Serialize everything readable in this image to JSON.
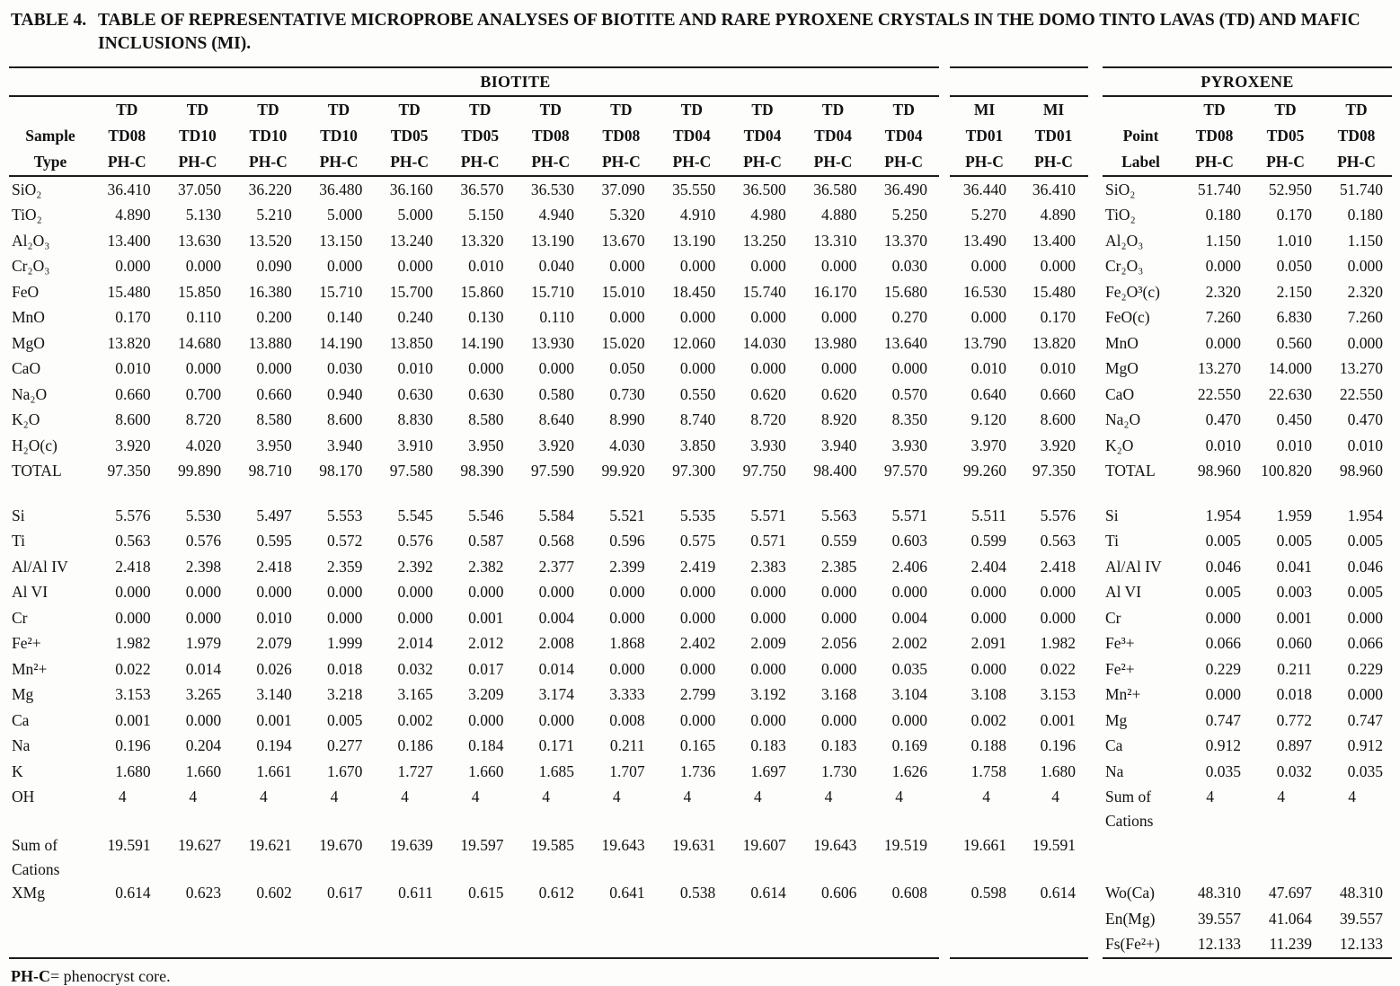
{
  "title": {
    "label": "TABLE 4.",
    "line1": "TABLE OF REPRESENTATIVE MICROPROBE ANALYSES OF BIOTITE AND RARE PYROXENE CRYSTALS IN THE DOMO TINTO LAVAS (TD) AND MAFIC",
    "line2": "INCLUSIONS (MI)."
  },
  "footnote": {
    "term": "PH-C",
    "text": "= phenocryst core."
  },
  "groups": {
    "biotite": {
      "title": "BIOTITE",
      "cols": 12,
      "head": [
        {
          "label": "",
          "cells": [
            "TD",
            "TD",
            "TD",
            "TD",
            "TD",
            "TD",
            "TD",
            "TD",
            "TD",
            "TD",
            "TD",
            "TD"
          ]
        },
        {
          "label": "Sample",
          "cells": [
            "TD08",
            "TD10",
            "TD10",
            "TD10",
            "TD05",
            "TD05",
            "TD08",
            "TD08",
            "TD04",
            "TD04",
            "TD04",
            "TD04"
          ]
        },
        {
          "label": "Type",
          "cells": [
            "PH-C",
            "PH-C",
            "PH-C",
            "PH-C",
            "PH-C",
            "PH-C",
            "PH-C",
            "PH-C",
            "PH-C",
            "PH-C",
            "PH-C",
            "PH-C"
          ]
        }
      ],
      "rows": [
        {
          "label": "SiO₂",
          "values": [
            "36.410",
            "37.050",
            "36.220",
            "36.480",
            "36.160",
            "36.570",
            "36.530",
            "37.090",
            "35.550",
            "36.500",
            "36.580",
            "36.490"
          ]
        },
        {
          "label": "TiO₂",
          "values": [
            "4.890",
            "5.130",
            "5.210",
            "5.000",
            "5.000",
            "5.150",
            "4.940",
            "5.320",
            "4.910",
            "4.980",
            "4.880",
            "5.250"
          ]
        },
        {
          "label": "Al₂O₃",
          "values": [
            "13.400",
            "13.630",
            "13.520",
            "13.150",
            "13.240",
            "13.320",
            "13.190",
            "13.670",
            "13.190",
            "13.250",
            "13.310",
            "13.370"
          ]
        },
        {
          "label": "Cr₂O₃",
          "values": [
            "0.000",
            "0.000",
            "0.090",
            "0.000",
            "0.000",
            "0.010",
            "0.040",
            "0.000",
            "0.000",
            "0.000",
            "0.000",
            "0.030"
          ]
        },
        {
          "label": "FeO",
          "values": [
            "15.480",
            "15.850",
            "16.380",
            "15.710",
            "15.700",
            "15.860",
            "15.710",
            "15.010",
            "18.450",
            "15.740",
            "16.170",
            "15.680"
          ]
        },
        {
          "label": "MnO",
          "values": [
            "0.170",
            "0.110",
            "0.200",
            "0.140",
            "0.240",
            "0.130",
            "0.110",
            "0.000",
            "0.000",
            "0.000",
            "0.000",
            "0.270"
          ]
        },
        {
          "label": "MgO",
          "values": [
            "13.820",
            "14.680",
            "13.880",
            "14.190",
            "13.850",
            "14.190",
            "13.930",
            "15.020",
            "12.060",
            "14.030",
            "13.980",
            "13.640"
          ]
        },
        {
          "label": "CaO",
          "values": [
            "0.010",
            "0.000",
            "0.000",
            "0.030",
            "0.010",
            "0.000",
            "0.000",
            "0.050",
            "0.000",
            "0.000",
            "0.000",
            "0.000"
          ]
        },
        {
          "label": "Na₂O",
          "values": [
            "0.660",
            "0.700",
            "0.660",
            "0.940",
            "0.630",
            "0.630",
            "0.580",
            "0.730",
            "0.550",
            "0.620",
            "0.620",
            "0.570"
          ]
        },
        {
          "label": "K₂O",
          "values": [
            "8.600",
            "8.720",
            "8.580",
            "8.600",
            "8.830",
            "8.580",
            "8.640",
            "8.990",
            "8.740",
            "8.720",
            "8.920",
            "8.350"
          ]
        },
        {
          "label": "H₂O(c)",
          "values": [
            "3.920",
            "4.020",
            "3.950",
            "3.940",
            "3.910",
            "3.950",
            "3.920",
            "4.030",
            "3.850",
            "3.930",
            "3.940",
            "3.930"
          ]
        },
        {
          "label": "TOTAL",
          "values": [
            "97.350",
            "99.890",
            "98.710",
            "98.170",
            "97.580",
            "98.390",
            "97.590",
            "99.920",
            "97.300",
            "97.750",
            "98.400",
            "97.570"
          ]
        },
        {
          "spacer": true
        },
        {
          "label": "Si",
          "values": [
            "5.576",
            "5.530",
            "5.497",
            "5.553",
            "5.545",
            "5.546",
            "5.584",
            "5.521",
            "5.535",
            "5.571",
            "5.563",
            "5.571"
          ]
        },
        {
          "label": "Ti",
          "values": [
            "0.563",
            "0.576",
            "0.595",
            "0.572",
            "0.576",
            "0.587",
            "0.568",
            "0.596",
            "0.575",
            "0.571",
            "0.559",
            "0.603"
          ]
        },
        {
          "label": "Al/Al IV",
          "values": [
            "2.418",
            "2.398",
            "2.418",
            "2.359",
            "2.392",
            "2.382",
            "2.377",
            "2.399",
            "2.419",
            "2.383",
            "2.385",
            "2.406"
          ]
        },
        {
          "label": "Al VI",
          "values": [
            "0.000",
            "0.000",
            "0.000",
            "0.000",
            "0.000",
            "0.000",
            "0.000",
            "0.000",
            "0.000",
            "0.000",
            "0.000",
            "0.000"
          ]
        },
        {
          "label": "Cr",
          "values": [
            "0.000",
            "0.000",
            "0.010",
            "0.000",
            "0.000",
            "0.001",
            "0.004",
            "0.000",
            "0.000",
            "0.000",
            "0.000",
            "0.004"
          ]
        },
        {
          "label": "Fe²+",
          "values": [
            "1.982",
            "1.979",
            "2.079",
            "1.999",
            "2.014",
            "2.012",
            "2.008",
            "1.868",
            "2.402",
            "2.009",
            "2.056",
            "2.002"
          ]
        },
        {
          "label": "Mn²+",
          "values": [
            "0.022",
            "0.014",
            "0.026",
            "0.018",
            "0.032",
            "0.017",
            "0.014",
            "0.000",
            "0.000",
            "0.000",
            "0.000",
            "0.035"
          ]
        },
        {
          "label": "Mg",
          "values": [
            "3.153",
            "3.265",
            "3.140",
            "3.218",
            "3.165",
            "3.209",
            "3.174",
            "3.333",
            "2.799",
            "3.192",
            "3.168",
            "3.104"
          ]
        },
        {
          "label": "Ca",
          "values": [
            "0.001",
            "0.000",
            "0.001",
            "0.005",
            "0.002",
            "0.000",
            "0.000",
            "0.008",
            "0.000",
            "0.000",
            "0.000",
            "0.000"
          ]
        },
        {
          "label": "Na",
          "values": [
            "0.196",
            "0.204",
            "0.194",
            "0.277",
            "0.186",
            "0.184",
            "0.171",
            "0.211",
            "0.165",
            "0.183",
            "0.183",
            "0.169"
          ]
        },
        {
          "label": "K",
          "values": [
            "1.680",
            "1.660",
            "1.661",
            "1.670",
            "1.727",
            "1.660",
            "1.685",
            "1.707",
            "1.736",
            "1.697",
            "1.730",
            "1.626"
          ]
        },
        {
          "label": "OH",
          "int": true,
          "values": [
            "4",
            "4",
            "4",
            "4",
            "4",
            "4",
            "4",
            "4",
            "4",
            "4",
            "4",
            "4"
          ]
        },
        {
          "label": "",
          "cls": "l2",
          "values": []
        },
        {
          "label": "Sum of",
          "values": [
            "19.591",
            "19.627",
            "19.621",
            "19.670",
            "19.639",
            "19.597",
            "19.585",
            "19.643",
            "19.631",
            "19.607",
            "19.643",
            "19.519"
          ]
        },
        {
          "label": "Cations",
          "cls": "l2",
          "values": []
        },
        {
          "label": "XMg",
          "values": [
            "0.614",
            "0.623",
            "0.602",
            "0.617",
            "0.611",
            "0.615",
            "0.612",
            "0.641",
            "0.538",
            "0.614",
            "0.606",
            "0.608"
          ]
        },
        {
          "label": "",
          "values": []
        },
        {
          "label": "",
          "values": []
        }
      ]
    },
    "mi": {
      "title": "",
      "cols": 2,
      "head": [
        {
          "cells": [
            "MI",
            "MI"
          ]
        },
        {
          "cells": [
            "TD01",
            "TD01"
          ]
        },
        {
          "cells": [
            "PH-C",
            "PH-C"
          ]
        }
      ],
      "rows": [
        {
          "values": [
            "36.440",
            "36.410"
          ]
        },
        {
          "values": [
            "5.270",
            "4.890"
          ]
        },
        {
          "values": [
            "13.490",
            "13.400"
          ]
        },
        {
          "values": [
            "0.000",
            "0.000"
          ]
        },
        {
          "values": [
            "16.530",
            "15.480"
          ]
        },
        {
          "values": [
            "0.000",
            "0.170"
          ]
        },
        {
          "values": [
            "13.790",
            "13.820"
          ]
        },
        {
          "values": [
            "0.010",
            "0.010"
          ]
        },
        {
          "values": [
            "0.640",
            "0.660"
          ]
        },
        {
          "values": [
            "9.120",
            "8.600"
          ]
        },
        {
          "values": [
            "3.970",
            "3.920"
          ]
        },
        {
          "values": [
            "99.260",
            "97.350"
          ]
        },
        {
          "spacer": true
        },
        {
          "values": [
            "5.511",
            "5.576"
          ]
        },
        {
          "values": [
            "0.599",
            "0.563"
          ]
        },
        {
          "values": [
            "2.404",
            "2.418"
          ]
        },
        {
          "values": [
            "0.000",
            "0.000"
          ]
        },
        {
          "values": [
            "0.000",
            "0.000"
          ]
        },
        {
          "values": [
            "2.091",
            "1.982"
          ]
        },
        {
          "values": [
            "0.000",
            "0.022"
          ]
        },
        {
          "values": [
            "3.108",
            "3.153"
          ]
        },
        {
          "values": [
            "0.002",
            "0.001"
          ]
        },
        {
          "values": [
            "0.188",
            "0.196"
          ]
        },
        {
          "values": [
            "1.758",
            "1.680"
          ]
        },
        {
          "int": true,
          "values": [
            "4",
            "4"
          ]
        },
        {
          "cls": "l2",
          "values": []
        },
        {
          "values": [
            "19.661",
            "19.591"
          ]
        },
        {
          "cls": "l2",
          "values": []
        },
        {
          "values": [
            "0.598",
            "0.614"
          ]
        },
        {
          "values": []
        },
        {
          "values": []
        }
      ]
    },
    "pyroxene": {
      "title": "PYROXENE",
      "cols": 3,
      "head": [
        {
          "label": "",
          "cells": [
            "TD",
            "TD",
            "TD"
          ]
        },
        {
          "label": "Point",
          "cells": [
            "TD08",
            "TD05",
            "TD08"
          ]
        },
        {
          "label": "Label",
          "cells": [
            "PH-C",
            "PH-C",
            "PH-C"
          ]
        }
      ],
      "rows": [
        {
          "label": "SiO₂",
          "values": [
            "51.740",
            "52.950",
            "51.740"
          ]
        },
        {
          "label": "TiO₂",
          "values": [
            "0.180",
            "0.170",
            "0.180"
          ]
        },
        {
          "label": "Al₂O₃",
          "values": [
            "1.150",
            "1.010",
            "1.150"
          ]
        },
        {
          "label": "Cr₂O₃",
          "values": [
            "0.000",
            "0.050",
            "0.000"
          ]
        },
        {
          "label": "Fe₂O³(c)",
          "values": [
            "2.320",
            "2.150",
            "2.320"
          ]
        },
        {
          "label": "FeO(c)",
          "values": [
            "7.260",
            "6.830",
            "7.260"
          ]
        },
        {
          "label": "MnO",
          "values": [
            "0.000",
            "0.560",
            "0.000"
          ]
        },
        {
          "label": "MgO",
          "values": [
            "13.270",
            "14.000",
            "13.270"
          ]
        },
        {
          "label": "CaO",
          "values": [
            "22.550",
            "22.630",
            "22.550"
          ]
        },
        {
          "label": "Na₂O",
          "values": [
            "0.470",
            "0.450",
            "0.470"
          ]
        },
        {
          "label": "K₂O",
          "values": [
            "0.010",
            "0.010",
            "0.010"
          ]
        },
        {
          "label": "TOTAL",
          "values": [
            "98.960",
            "100.820",
            "98.960"
          ]
        },
        {
          "spacer": true
        },
        {
          "label": "Si",
          "values": [
            "1.954",
            "1.959",
            "1.954"
          ]
        },
        {
          "label": "Ti",
          "values": [
            "0.005",
            "0.005",
            "0.005"
          ]
        },
        {
          "label": "Al/Al IV",
          "values": [
            "0.046",
            "0.041",
            "0.046"
          ]
        },
        {
          "label": "Al VI",
          "values": [
            "0.005",
            "0.003",
            "0.005"
          ]
        },
        {
          "label": "Cr",
          "values": [
            "0.000",
            "0.001",
            "0.000"
          ]
        },
        {
          "label": "Fe³+",
          "values": [
            "0.066",
            "0.060",
            "0.066"
          ]
        },
        {
          "label": "Fe²+",
          "values": [
            "0.229",
            "0.211",
            "0.229"
          ]
        },
        {
          "label": "Mn²+",
          "values": [
            "0.000",
            "0.018",
            "0.000"
          ]
        },
        {
          "label": "Mg",
          "values": [
            "0.747",
            "0.772",
            "0.747"
          ]
        },
        {
          "label": "Ca",
          "values": [
            "0.912",
            "0.897",
            "0.912"
          ]
        },
        {
          "label": "Na",
          "values": [
            "0.035",
            "0.032",
            "0.035"
          ]
        },
        {
          "label": "Sum of",
          "int": true,
          "values": [
            "4",
            "4",
            "4"
          ]
        },
        {
          "label": "Cations",
          "cls": "l2",
          "values": []
        },
        {
          "label": "",
          "values": []
        },
        {
          "label": "",
          "cls": "l2",
          "values": []
        },
        {
          "label": "Wo(Ca)",
          "values": [
            "48.310",
            "47.697",
            "48.310"
          ]
        },
        {
          "label": "En(Mg)",
          "values": [
            "39.557",
            "41.064",
            "39.557"
          ]
        },
        {
          "label": "Fs(Fe²+)",
          "values": [
            "12.133",
            "11.239",
            "12.133"
          ]
        }
      ]
    }
  }
}
